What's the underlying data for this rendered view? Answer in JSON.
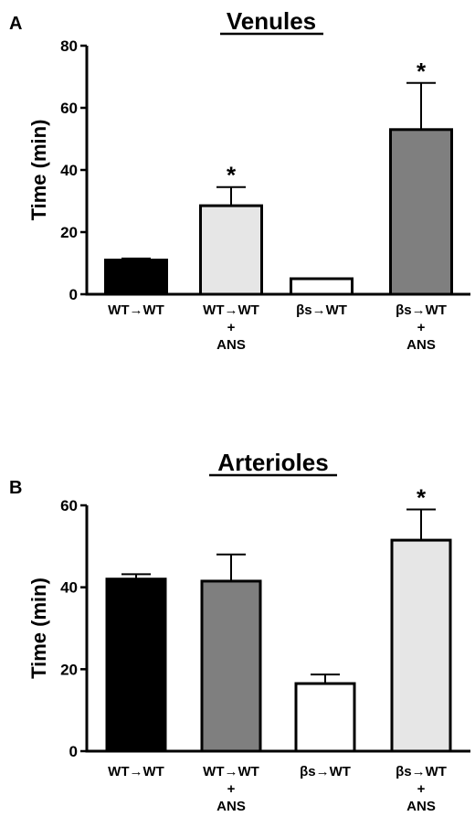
{
  "chart_data": [
    {
      "type": "bar",
      "panel_label": "A",
      "title": "Venules",
      "ylabel": "Time (min)",
      "ylim": [
        0,
        80
      ],
      "yticks": [
        "0",
        "20",
        "40",
        "60",
        "80"
      ],
      "categories": [
        [
          "WT→WT"
        ],
        [
          "WT→WT",
          "+",
          "ANS"
        ],
        [
          "βs→WT"
        ],
        [
          "βs→WT",
          "+",
          "ANS"
        ]
      ],
      "values": [
        11,
        28.5,
        5,
        53
      ],
      "errors": [
        0.5,
        6,
        0,
        15
      ],
      "significance": [
        "",
        "*",
        "",
        "*"
      ],
      "colors": [
        "#000000",
        "#e6e6e6",
        "#ffffff",
        "#7f7f7f"
      ],
      "grid": false
    },
    {
      "type": "bar",
      "panel_label": "B",
      "title": "Arterioles",
      "ylabel": "Time (min)",
      "ylim": [
        0,
        60
      ],
      "yticks": [
        "0",
        "20",
        "40",
        "60"
      ],
      "categories": [
        [
          "WT→WT"
        ],
        [
          "WT→WT",
          "+",
          "ANS"
        ],
        [
          "βs→WT"
        ],
        [
          "βs→WT",
          "+",
          "ANS"
        ]
      ],
      "values": [
        42,
        41.5,
        16.5,
        51.5
      ],
      "errors": [
        1.2,
        6.5,
        2.2,
        7.5
      ],
      "significance": [
        "",
        "",
        "",
        "*"
      ],
      "colors": [
        "#000000",
        "#7f7f7f",
        "#ffffff",
        "#e6e6e6"
      ],
      "grid": false
    }
  ]
}
